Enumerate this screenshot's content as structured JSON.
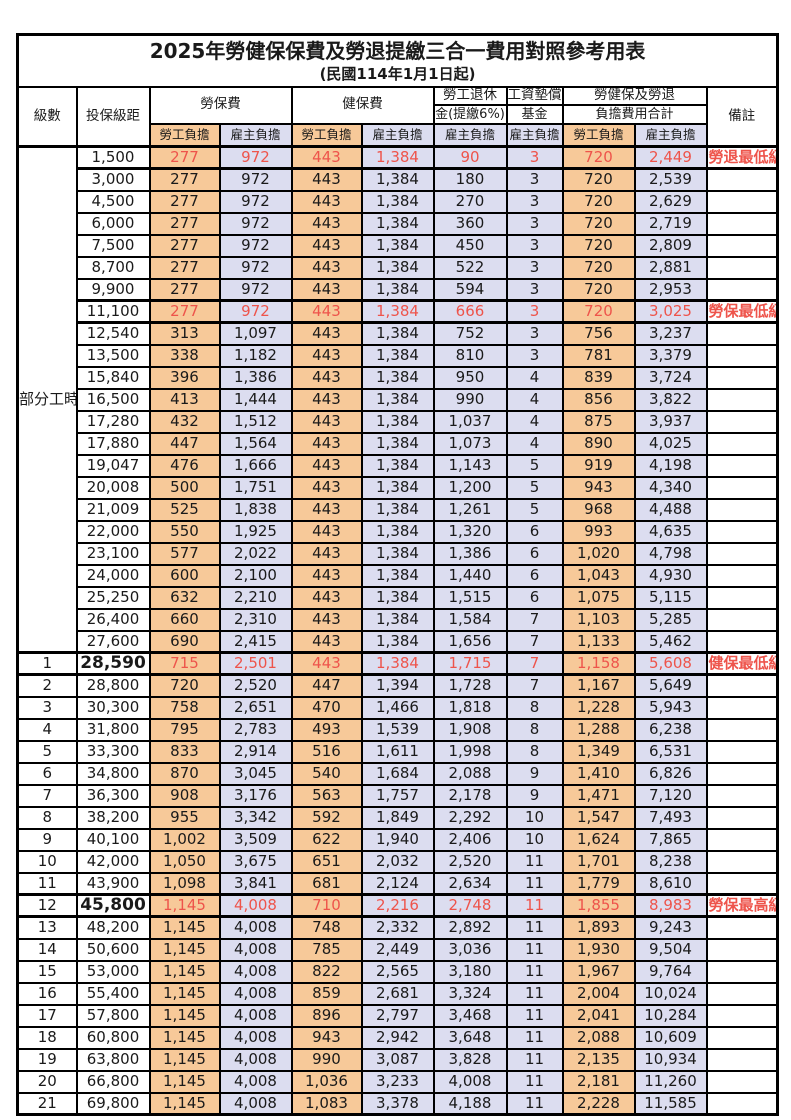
{
  "title": "2025年勞健保保費及勞退提繳三合一費用對照參考用表",
  "subtitle": "(民國114年1月1日起)",
  "colors": {
    "employee_bg": "#F7C999",
    "employer_bg": "#DCDDF0",
    "highlight_text": "#EE544B",
    "border": "#000000"
  },
  "header": {
    "level": "級數",
    "bracket": "投保級距",
    "labor_fee": "勞保費",
    "health_fee": "健保費",
    "pension_top": "勞工退休",
    "pension_bottom": "金(提繳6%)",
    "wage_fund_top": "工資墊償",
    "wage_fund_bottom": "基金",
    "total_top": "勞健保及勞退",
    "total_bottom": "負擔費用合計",
    "remark": "備註",
    "employee": "勞工負擔",
    "employer": "雇主負擔"
  },
  "value_columns": [
    {
      "key": "labor-fee-employee",
      "payer": "employee"
    },
    {
      "key": "labor-fee-employer",
      "payer": "employer"
    },
    {
      "key": "health-fee-employee",
      "payer": "employee"
    },
    {
      "key": "health-fee-employer",
      "payer": "employer"
    },
    {
      "key": "pension-employer",
      "payer": "employer"
    },
    {
      "key": "wage-fund-employer",
      "payer": "employer"
    },
    {
      "key": "total-employee",
      "payer": "employee"
    },
    {
      "key": "total-employer",
      "payer": "employer"
    }
  ],
  "rows": [
    {
      "group_label": "部分工時",
      "group_rowspan": 23,
      "bracket": "1,500",
      "values": [
        "277",
        "972",
        "443",
        "1,384",
        "90",
        "3",
        "720",
        "2,449"
      ],
      "remark": "勞退最低級距",
      "highlight": true
    },
    {
      "bracket": "3,000",
      "values": [
        "277",
        "972",
        "443",
        "1,384",
        "180",
        "3",
        "720",
        "2,539"
      ],
      "remark": ""
    },
    {
      "bracket": "4,500",
      "values": [
        "277",
        "972",
        "443",
        "1,384",
        "270",
        "3",
        "720",
        "2,629"
      ],
      "remark": ""
    },
    {
      "bracket": "6,000",
      "values": [
        "277",
        "972",
        "443",
        "1,384",
        "360",
        "3",
        "720",
        "2,719"
      ],
      "remark": ""
    },
    {
      "bracket": "7,500",
      "values": [
        "277",
        "972",
        "443",
        "1,384",
        "450",
        "3",
        "720",
        "2,809"
      ],
      "remark": ""
    },
    {
      "bracket": "8,700",
      "values": [
        "277",
        "972",
        "443",
        "1,384",
        "522",
        "3",
        "720",
        "2,881"
      ],
      "remark": ""
    },
    {
      "bracket": "9,900",
      "values": [
        "277",
        "972",
        "443",
        "1,384",
        "594",
        "3",
        "720",
        "2,953"
      ],
      "remark": ""
    },
    {
      "bracket": "11,100",
      "values": [
        "277",
        "972",
        "443",
        "1,384",
        "666",
        "3",
        "720",
        "3,025"
      ],
      "remark": "勞保最低級距",
      "highlight": true
    },
    {
      "bracket": "12,540",
      "values": [
        "313",
        "1,097",
        "443",
        "1,384",
        "752",
        "3",
        "756",
        "3,237"
      ],
      "remark": ""
    },
    {
      "bracket": "13,500",
      "values": [
        "338",
        "1,182",
        "443",
        "1,384",
        "810",
        "3",
        "781",
        "3,379"
      ],
      "remark": ""
    },
    {
      "bracket": "15,840",
      "values": [
        "396",
        "1,386",
        "443",
        "1,384",
        "950",
        "4",
        "839",
        "3,724"
      ],
      "remark": ""
    },
    {
      "bracket": "16,500",
      "values": [
        "413",
        "1,444",
        "443",
        "1,384",
        "990",
        "4",
        "856",
        "3,822"
      ],
      "remark": ""
    },
    {
      "bracket": "17,280",
      "values": [
        "432",
        "1,512",
        "443",
        "1,384",
        "1,037",
        "4",
        "875",
        "3,937"
      ],
      "remark": ""
    },
    {
      "bracket": "17,880",
      "values": [
        "447",
        "1,564",
        "443",
        "1,384",
        "1,073",
        "4",
        "890",
        "4,025"
      ],
      "remark": ""
    },
    {
      "bracket": "19,047",
      "values": [
        "476",
        "1,666",
        "443",
        "1,384",
        "1,143",
        "5",
        "919",
        "4,198"
      ],
      "remark": ""
    },
    {
      "bracket": "20,008",
      "values": [
        "500",
        "1,751",
        "443",
        "1,384",
        "1,200",
        "5",
        "943",
        "4,340"
      ],
      "remark": ""
    },
    {
      "bracket": "21,009",
      "values": [
        "525",
        "1,838",
        "443",
        "1,384",
        "1,261",
        "5",
        "968",
        "4,488"
      ],
      "remark": ""
    },
    {
      "bracket": "22,000",
      "values": [
        "550",
        "1,925",
        "443",
        "1,384",
        "1,320",
        "6",
        "993",
        "4,635"
      ],
      "remark": ""
    },
    {
      "bracket": "23,100",
      "values": [
        "577",
        "2,022",
        "443",
        "1,384",
        "1,386",
        "6",
        "1,020",
        "4,798"
      ],
      "remark": ""
    },
    {
      "bracket": "24,000",
      "values": [
        "600",
        "2,100",
        "443",
        "1,384",
        "1,440",
        "6",
        "1,043",
        "4,930"
      ],
      "remark": ""
    },
    {
      "bracket": "25,250",
      "values": [
        "632",
        "2,210",
        "443",
        "1,384",
        "1,515",
        "6",
        "1,075",
        "5,115"
      ],
      "remark": ""
    },
    {
      "bracket": "26,400",
      "values": [
        "660",
        "2,310",
        "443",
        "1,384",
        "1,584",
        "7",
        "1,103",
        "5,285"
      ],
      "remark": ""
    },
    {
      "bracket": "27,600",
      "values": [
        "690",
        "2,415",
        "443",
        "1,384",
        "1,656",
        "7",
        "1,133",
        "5,462"
      ],
      "remark": ""
    },
    {
      "level": "1",
      "bracket": "28,590",
      "values": [
        "715",
        "2,501",
        "443",
        "1,384",
        "1,715",
        "7",
        "1,158",
        "5,608"
      ],
      "remark": "健保最低級距",
      "highlight": true,
      "bold": true
    },
    {
      "level": "2",
      "bracket": "28,800",
      "values": [
        "720",
        "2,520",
        "447",
        "1,394",
        "1,728",
        "7",
        "1,167",
        "5,649"
      ],
      "remark": ""
    },
    {
      "level": "3",
      "bracket": "30,300",
      "values": [
        "758",
        "2,651",
        "470",
        "1,466",
        "1,818",
        "8",
        "1,228",
        "5,943"
      ],
      "remark": ""
    },
    {
      "level": "4",
      "bracket": "31,800",
      "values": [
        "795",
        "2,783",
        "493",
        "1,539",
        "1,908",
        "8",
        "1,288",
        "6,238"
      ],
      "remark": ""
    },
    {
      "level": "5",
      "bracket": "33,300",
      "values": [
        "833",
        "2,914",
        "516",
        "1,611",
        "1,998",
        "8",
        "1,349",
        "6,531"
      ],
      "remark": ""
    },
    {
      "level": "6",
      "bracket": "34,800",
      "values": [
        "870",
        "3,045",
        "540",
        "1,684",
        "2,088",
        "9",
        "1,410",
        "6,826"
      ],
      "remark": ""
    },
    {
      "level": "7",
      "bracket": "36,300",
      "values": [
        "908",
        "3,176",
        "563",
        "1,757",
        "2,178",
        "9",
        "1,471",
        "7,120"
      ],
      "remark": ""
    },
    {
      "level": "8",
      "bracket": "38,200",
      "values": [
        "955",
        "3,342",
        "592",
        "1,849",
        "2,292",
        "10",
        "1,547",
        "7,493"
      ],
      "remark": ""
    },
    {
      "level": "9",
      "bracket": "40,100",
      "values": [
        "1,002",
        "3,509",
        "622",
        "1,940",
        "2,406",
        "10",
        "1,624",
        "7,865"
      ],
      "remark": ""
    },
    {
      "level": "10",
      "bracket": "42,000",
      "values": [
        "1,050",
        "3,675",
        "651",
        "2,032",
        "2,520",
        "11",
        "1,701",
        "8,238"
      ],
      "remark": ""
    },
    {
      "level": "11",
      "bracket": "43,900",
      "values": [
        "1,098",
        "3,841",
        "681",
        "2,124",
        "2,634",
        "11",
        "1,779",
        "8,610"
      ],
      "remark": ""
    },
    {
      "level": "12",
      "bracket": "45,800",
      "values": [
        "1,145",
        "4,008",
        "710",
        "2,216",
        "2,748",
        "11",
        "1,855",
        "8,983"
      ],
      "remark": "勞保最高級距",
      "highlight": true,
      "bold": true
    },
    {
      "level": "13",
      "bracket": "48,200",
      "values": [
        "1,145",
        "4,008",
        "748",
        "2,332",
        "2,892",
        "11",
        "1,893",
        "9,243"
      ],
      "remark": ""
    },
    {
      "level": "14",
      "bracket": "50,600",
      "values": [
        "1,145",
        "4,008",
        "785",
        "2,449",
        "3,036",
        "11",
        "1,930",
        "9,504"
      ],
      "remark": ""
    },
    {
      "level": "15",
      "bracket": "53,000",
      "values": [
        "1,145",
        "4,008",
        "822",
        "2,565",
        "3,180",
        "11",
        "1,967",
        "9,764"
      ],
      "remark": ""
    },
    {
      "level": "16",
      "bracket": "55,400",
      "values": [
        "1,145",
        "4,008",
        "859",
        "2,681",
        "3,324",
        "11",
        "2,004",
        "10,024"
      ],
      "remark": ""
    },
    {
      "level": "17",
      "bracket": "57,800",
      "values": [
        "1,145",
        "4,008",
        "896",
        "2,797",
        "3,468",
        "11",
        "2,041",
        "10,284"
      ],
      "remark": ""
    },
    {
      "level": "18",
      "bracket": "60,800",
      "values": [
        "1,145",
        "4,008",
        "943",
        "2,942",
        "3,648",
        "11",
        "2,088",
        "10,609"
      ],
      "remark": ""
    },
    {
      "level": "19",
      "bracket": "63,800",
      "values": [
        "1,145",
        "4,008",
        "990",
        "3,087",
        "3,828",
        "11",
        "2,135",
        "10,934"
      ],
      "remark": ""
    },
    {
      "level": "20",
      "bracket": "66,800",
      "values": [
        "1,145",
        "4,008",
        "1,036",
        "3,233",
        "4,008",
        "11",
        "2,181",
        "11,260"
      ],
      "remark": ""
    },
    {
      "level": "21",
      "bracket": "69,800",
      "values": [
        "1,145",
        "4,008",
        "1,083",
        "3,378",
        "4,188",
        "11",
        "2,228",
        "11,585"
      ],
      "remark": ""
    }
  ]
}
